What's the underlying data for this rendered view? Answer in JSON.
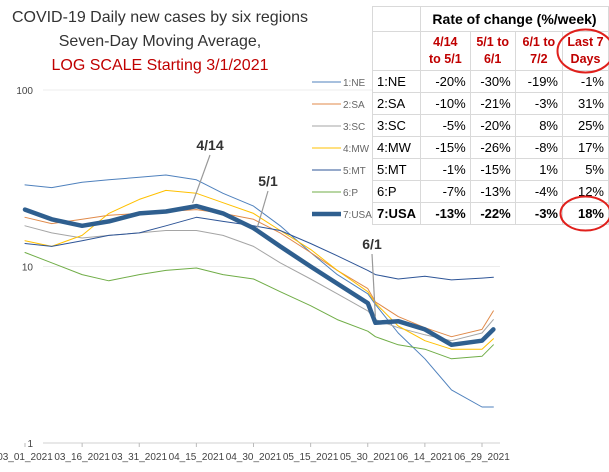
{
  "chart_data": {
    "type": "line",
    "title": [
      "COVID-19 Daily new cases by six regions",
      "Seven-Day Moving Average,"
    ],
    "title_log_line": "LOG SCALE Starting 3/1/2021",
    "title_color": "#333333",
    "log_line_color": "#c00000",
    "y_scale": "log",
    "ylim": [
      1,
      100
    ],
    "y_ticks": [
      "1",
      "10",
      "100"
    ],
    "x_ticks": [
      "03_01_2021",
      "03_16_2021",
      "03_31_2021",
      "04_15_2021",
      "04_30_2021",
      "05_15_2021",
      "05_30_2021",
      "06_14_2021",
      "06_29_2021"
    ],
    "x": [
      "03_01_2021",
      "03_08_2021",
      "03_16_2021",
      "03_23_2021",
      "03_31_2021",
      "04_07_2021",
      "04_15_2021",
      "04_22_2021",
      "04_30_2021",
      "05_07_2021",
      "05_15_2021",
      "05_22_2021",
      "05_30_2021",
      "06_01_2021",
      "06_07_2021",
      "06_14_2021",
      "06_21_2021",
      "06_29_2021",
      "07_02_2021"
    ],
    "legend_placement": "top-right",
    "series": [
      {
        "name": "1:NE",
        "color": "#4f81bd",
        "width": 1,
        "values": [
          29,
          28,
          30,
          31,
          32,
          33,
          31,
          26,
          22,
          17,
          12,
          9,
          7,
          6.1,
          4.2,
          3.0,
          2.0,
          1.6,
          1.6
        ]
      },
      {
        "name": "2:SA",
        "color": "#e08a4a",
        "width": 1,
        "values": [
          19,
          17.5,
          18.5,
          19.5,
          20,
          20.5,
          21,
          20,
          18.5,
          15.5,
          12,
          9.5,
          7.5,
          6.3,
          5.2,
          4.5,
          4.0,
          4.4,
          5.6
        ]
      },
      {
        "name": "3:SC",
        "color": "#a5a5a5",
        "width": 1,
        "values": [
          17,
          15.5,
          14.5,
          15,
          15.5,
          16,
          16,
          15,
          13,
          10.5,
          8.5,
          7,
          5.6,
          5.0,
          4.5,
          4.1,
          3.8,
          4.2,
          5.0
        ]
      },
      {
        "name": "4:MW",
        "color": "#ffc000",
        "width": 1,
        "values": [
          14,
          13,
          15,
          20,
          24,
          27,
          26,
          23,
          20,
          16,
          12.5,
          9.5,
          7.2,
          6.2,
          4.6,
          3.8,
          3.4,
          3.4,
          3.9
        ]
      },
      {
        "name": "5:MT",
        "color": "#2e5597",
        "width": 1,
        "values": [
          13.5,
          13,
          14,
          15,
          15.5,
          17,
          19,
          18,
          17,
          16,
          13.5,
          11.5,
          9.5,
          9.0,
          8.5,
          8.8,
          8.4,
          8.6,
          8.7
        ]
      },
      {
        "name": "6:P",
        "color": "#70ad47",
        "width": 1,
        "values": [
          12,
          10.5,
          9,
          8.3,
          9,
          9.5,
          9.8,
          9,
          8.5,
          7.2,
          6,
          5,
          4.3,
          4.0,
          3.6,
          3.4,
          3.0,
          3.1,
          3.6
        ]
      },
      {
        "name": "7:USA",
        "color": "#2f5f8f",
        "width": 4.5,
        "values": [
          21,
          18.5,
          17,
          18,
          20,
          20.5,
          22,
          20,
          16.5,
          13,
          10,
          8,
          6.2,
          4.8,
          4.9,
          4.4,
          3.6,
          3.8,
          4.4
        ]
      }
    ],
    "annotations": [
      {
        "label": "4/14",
        "x": "04_14_2021",
        "y": 22
      },
      {
        "label": "5/1",
        "x": "05_01_2021",
        "y": 16
      },
      {
        "label": "6/1",
        "x": "06_01_2021",
        "y": 5.0
      }
    ]
  },
  "rate_table": {
    "caption": "Rate of change (%/week)",
    "header_color": "#c00000",
    "headers": [
      [
        "4/14",
        "to 5/1"
      ],
      [
        "5/1 to",
        "6/1"
      ],
      [
        "6/1 to",
        "7/2"
      ],
      [
        "Last 7",
        "Days"
      ]
    ],
    "rows": [
      {
        "region": "1:NE",
        "values": [
          "-20%",
          "-30%",
          "-19%",
          "-1%"
        ],
        "bold": false
      },
      {
        "region": "2:SA",
        "values": [
          "-10%",
          "-21%",
          "-3%",
          "31%"
        ],
        "bold": false
      },
      {
        "region": "3:SC",
        "values": [
          "-5%",
          "-20%",
          "8%",
          "25%"
        ],
        "bold": false
      },
      {
        "region": "4:MW",
        "values": [
          "-15%",
          "-26%",
          "-8%",
          "17%"
        ],
        "bold": false
      },
      {
        "region": "5:MT",
        "values": [
          "-1%",
          "-15%",
          "1%",
          "5%"
        ],
        "bold": false
      },
      {
        "region": "6:P",
        "values": [
          "-7%",
          "-13%",
          "-4%",
          "12%"
        ],
        "bold": false
      },
      {
        "region": "7:USA",
        "values": [
          "-13%",
          "-22%",
          "-3%",
          "18%"
        ],
        "bold": true
      }
    ],
    "circle_color": "#e0201c"
  }
}
